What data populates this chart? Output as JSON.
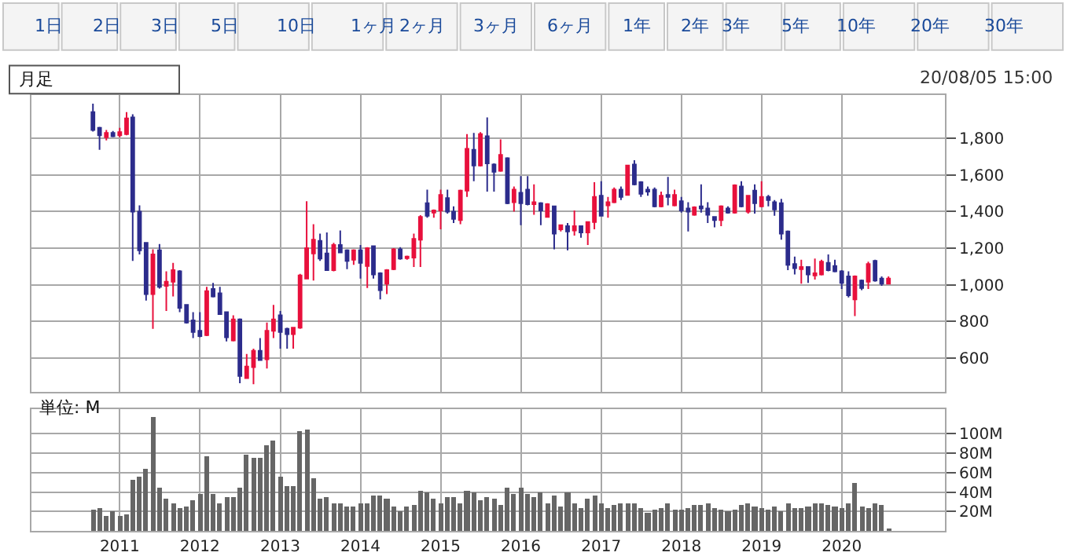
{
  "chart_data": [
    {
      "type": "candlestick",
      "x": [
        "2010-09",
        "2010-10",
        "2010-11",
        "2010-12",
        "2011-01",
        "2011-02",
        "2011-03",
        "2011-04",
        "2011-05",
        "2011-06",
        "2011-07",
        "2011-08",
        "2011-09",
        "2011-10",
        "2011-11",
        "2011-12",
        "2012-01",
        "2012-02",
        "2012-03",
        "2012-04",
        "2012-05",
        "2012-06",
        "2012-07",
        "2012-08",
        "2012-09",
        "2012-10",
        "2012-11",
        "2012-12",
        "2013-01",
        "2013-02",
        "2013-03",
        "2013-04",
        "2013-05",
        "2013-06",
        "2013-07",
        "2013-08",
        "2013-09",
        "2013-10",
        "2013-11",
        "2013-12",
        "2014-01",
        "2014-02",
        "2014-03",
        "2014-04",
        "2014-05",
        "2014-06",
        "2014-07",
        "2014-08",
        "2014-09",
        "2014-10",
        "2014-11",
        "2014-12",
        "2015-01",
        "2015-02",
        "2015-03",
        "2015-04",
        "2015-05",
        "2015-06",
        "2015-07",
        "2015-08",
        "2015-09",
        "2015-10",
        "2015-11",
        "2015-12",
        "2016-01",
        "2016-02",
        "2016-03",
        "2016-04",
        "2016-05",
        "2016-06",
        "2016-07",
        "2016-08",
        "2016-09",
        "2016-10",
        "2016-11",
        "2016-12",
        "2017-01",
        "2017-02",
        "2017-03",
        "2017-04",
        "2017-05",
        "2017-06",
        "2017-07",
        "2017-08",
        "2017-09",
        "2017-10",
        "2017-11",
        "2017-12",
        "2018-01",
        "2018-02",
        "2018-03",
        "2018-04",
        "2018-05",
        "2018-06",
        "2018-07",
        "2018-08",
        "2018-09",
        "2018-10",
        "2018-11",
        "2018-12",
        "2019-01",
        "2019-02",
        "2019-03",
        "2019-04",
        "2019-05",
        "2019-06",
        "2019-07",
        "2019-08",
        "2019-09",
        "2019-10",
        "2019-11",
        "2019-12",
        "2020-01",
        "2020-02",
        "2020-03",
        "2020-04",
        "2020-05",
        "2020-06",
        "2020-07",
        "2020-08"
      ],
      "ohlc": [
        [
          1943,
          1989,
          1837,
          1846
        ],
        [
          1857,
          1863,
          1737,
          1817
        ],
        [
          1806,
          1846,
          1789,
          1829
        ],
        [
          1829,
          1840,
          1806,
          1811
        ],
        [
          1817,
          1857,
          1806,
          1834
        ],
        [
          1823,
          1943,
          1817,
          1909
        ],
        [
          1914,
          1931,
          1131,
          1400
        ],
        [
          1400,
          1434,
          1166,
          1189
        ],
        [
          1229,
          1234,
          914,
          949
        ],
        [
          949,
          1194,
          760,
          1166
        ],
        [
          1189,
          1223,
          980,
          989
        ],
        [
          994,
          1074,
          857,
          1017
        ],
        [
          1017,
          1120,
          937,
          1080
        ],
        [
          1074,
          1080,
          851,
          874
        ],
        [
          891,
          891,
          789,
          794
        ],
        [
          806,
          851,
          709,
          743
        ],
        [
          749,
          851,
          714,
          720
        ],
        [
          726,
          989,
          720,
          966
        ],
        [
          977,
          1011,
          931,
          937
        ],
        [
          954,
          989,
          840,
          840
        ],
        [
          851,
          851,
          691,
          714
        ],
        [
          697,
          834,
          691,
          811
        ],
        [
          811,
          817,
          463,
          503
        ],
        [
          491,
          623,
          486,
          554
        ],
        [
          551,
          651,
          457,
          640
        ],
        [
          640,
          709,
          589,
          589
        ],
        [
          594,
          794,
          543,
          749
        ],
        [
          749,
          891,
          709,
          811
        ],
        [
          834,
          857,
          651,
          743
        ],
        [
          760,
          766,
          651,
          731
        ],
        [
          731,
          766,
          651,
          766
        ],
        [
          766,
          1060,
          760,
          1051
        ],
        [
          1034,
          1457,
          1034,
          1200
        ],
        [
          1171,
          1331,
          1023,
          1246
        ],
        [
          1240,
          1280,
          1131,
          1143
        ],
        [
          1171,
          1286,
          1080,
          1080
        ],
        [
          1080,
          1229,
          1074,
          1217
        ],
        [
          1217,
          1297,
          1177,
          1177
        ],
        [
          1189,
          1194,
          1086,
          1131
        ],
        [
          1137,
          1194,
          1109,
          1189
        ],
        [
          1189,
          1217,
          1034,
          1120
        ],
        [
          1103,
          1206,
          983,
          1200
        ],
        [
          1211,
          1211,
          1034,
          1057
        ],
        [
          1063,
          1069,
          920,
          971
        ],
        [
          1006,
          1086,
          949,
          1080
        ],
        [
          1086,
          1200,
          1080,
          1194
        ],
        [
          1194,
          1206,
          1137,
          1143
        ],
        [
          1146,
          1160,
          1137,
          1154
        ],
        [
          1149,
          1280,
          1097,
          1251
        ],
        [
          1246,
          1380,
          1097,
          1371
        ],
        [
          1446,
          1520,
          1366,
          1377
        ],
        [
          1394,
          1411,
          1366,
          1406
        ],
        [
          1406,
          1520,
          1303,
          1491
        ],
        [
          1474,
          1520,
          1389,
          1400
        ],
        [
          1400,
          1429,
          1337,
          1360
        ],
        [
          1354,
          1520,
          1331,
          1514
        ],
        [
          1514,
          1823,
          1480,
          1743
        ],
        [
          1737,
          1829,
          1566,
          1651
        ],
        [
          1651,
          1834,
          1646,
          1823
        ],
        [
          1811,
          1914,
          1509,
          1663
        ],
        [
          1657,
          1663,
          1509,
          1617
        ],
        [
          1623,
          1794,
          1617,
          1709
        ],
        [
          1691,
          1697,
          1440,
          1446
        ],
        [
          1451,
          1537,
          1400,
          1520
        ],
        [
          1503,
          1594,
          1326,
          1446
        ],
        [
          1520,
          1594,
          1434,
          1440
        ],
        [
          1440,
          1549,
          1383,
          1451
        ],
        [
          1446,
          1451,
          1326,
          1406
        ],
        [
          1371,
          1446,
          1366,
          1440
        ],
        [
          1429,
          1429,
          1194,
          1280
        ],
        [
          1303,
          1326,
          1291,
          1326
        ],
        [
          1320,
          1337,
          1189,
          1291
        ],
        [
          1297,
          1406,
          1269,
          1320
        ],
        [
          1320,
          1320,
          1257,
          1286
        ],
        [
          1286,
          1343,
          1217,
          1343
        ],
        [
          1343,
          1560,
          1303,
          1480
        ],
        [
          1486,
          1566,
          1377,
          1377
        ],
        [
          1434,
          1480,
          1366,
          1451
        ],
        [
          1451,
          1531,
          1446,
          1520
        ],
        [
          1520,
          1537,
          1463,
          1480
        ],
        [
          1491,
          1651,
          1486,
          1651
        ],
        [
          1657,
          1680,
          1543,
          1549
        ],
        [
          1560,
          1566,
          1480,
          1497
        ],
        [
          1520,
          1537,
          1486,
          1509
        ],
        [
          1520,
          1531,
          1423,
          1429
        ],
        [
          1429,
          1509,
          1423,
          1486
        ],
        [
          1491,
          1589,
          1434,
          1480
        ],
        [
          1434,
          1520,
          1429,
          1491
        ],
        [
          1457,
          1480,
          1394,
          1406
        ],
        [
          1417,
          1451,
          1291,
          1400
        ],
        [
          1383,
          1429,
          1377,
          1423
        ],
        [
          1429,
          1549,
          1394,
          1417
        ],
        [
          1417,
          1451,
          1337,
          1383
        ],
        [
          1371,
          1371,
          1314,
          1354
        ],
        [
          1354,
          1434,
          1320,
          1429
        ],
        [
          1417,
          1429,
          1389,
          1394
        ],
        [
          1394,
          1549,
          1389,
          1543
        ],
        [
          1537,
          1566,
          1423,
          1429
        ],
        [
          1400,
          1491,
          1389,
          1486
        ],
        [
          1514,
          1549,
          1389,
          1446
        ],
        [
          1429,
          1566,
          1423,
          1480
        ],
        [
          1480,
          1491,
          1429,
          1463
        ],
        [
          1451,
          1463,
          1377,
          1411
        ],
        [
          1446,
          1469,
          1246,
          1280
        ],
        [
          1291,
          1297,
          1080,
          1109
        ],
        [
          1114,
          1154,
          1057,
          1091
        ],
        [
          1086,
          1137,
          1006,
          1097
        ],
        [
          1097,
          1097,
          1011,
          1057
        ],
        [
          1051,
          1143,
          1029,
          1063
        ],
        [
          1057,
          1137,
          1051,
          1126
        ],
        [
          1120,
          1166,
          1074,
          1080
        ],
        [
          1103,
          1137,
          1069,
          1074
        ],
        [
          1074,
          1080,
          977,
          1011
        ],
        [
          1046,
          1074,
          931,
          943
        ],
        [
          920,
          1051,
          829,
          1046
        ],
        [
          1023,
          1029,
          971,
          983
        ],
        [
          1017,
          1126,
          977,
          1114
        ],
        [
          1131,
          1137,
          1017,
          1023
        ],
        [
          1034,
          1046,
          994,
          1006
        ],
        [
          1006,
          1046,
          1006,
          1034
        ]
      ],
      "colors": [
        "#2c2c8c",
        "#2c2c8c",
        "#e8103c",
        "#2c2c8c",
        "#e8103c",
        "#e8103c",
        "#2c2c8c",
        "#2c2c8c",
        "#2c2c8c",
        "#e8103c",
        "#2c2c8c",
        "#e8103c",
        "#e8103c",
        "#2c2c8c",
        "#2c2c8c",
        "#2c2c8c",
        "#2c2c8c",
        "#e8103c",
        "#2c2c8c",
        "#2c2c8c",
        "#2c2c8c",
        "#e8103c",
        "#2c2c8c",
        "#e8103c",
        "#e8103c",
        "#2c2c8c",
        "#e8103c",
        "#e8103c",
        "#2c2c8c",
        "#2c2c8c",
        "#e8103c",
        "#e8103c",
        "#e8103c",
        "#e8103c",
        "#2c2c8c",
        "#2c2c8c",
        "#e8103c",
        "#2c2c8c",
        "#2c2c8c",
        "#e8103c",
        "#2c2c8c",
        "#e8103c",
        "#2c2c8c",
        "#2c2c8c",
        "#e8103c",
        "#e8103c",
        "#2c2c8c",
        "#e8103c",
        "#e8103c",
        "#e8103c",
        "#2c2c8c",
        "#e8103c",
        "#e8103c",
        "#2c2c8c",
        "#2c2c8c",
        "#e8103c",
        "#e8103c",
        "#2c2c8c",
        "#e8103c",
        "#2c2c8c",
        "#2c2c8c",
        "#e8103c",
        "#2c2c8c",
        "#e8103c",
        "#2c2c8c",
        "#2c2c8c",
        "#e8103c",
        "#2c2c8c",
        "#e8103c",
        "#2c2c8c",
        "#e8103c",
        "#2c2c8c",
        "#e8103c",
        "#2c2c8c",
        "#e8103c",
        "#e8103c",
        "#2c2c8c",
        "#e8103c",
        "#e8103c",
        "#2c2c8c",
        "#e8103c",
        "#2c2c8c",
        "#2c2c8c",
        "#2c2c8c",
        "#2c2c8c",
        "#e8103c",
        "#2c2c8c",
        "#e8103c",
        "#2c2c8c",
        "#2c2c8c",
        "#e8103c",
        "#2c2c8c",
        "#2c2c8c",
        "#2c2c8c",
        "#e8103c",
        "#2c2c8c",
        "#e8103c",
        "#2c2c8c",
        "#e8103c",
        "#2c2c8c",
        "#e8103c",
        "#2c2c8c",
        "#2c2c8c",
        "#2c2c8c",
        "#2c2c8c",
        "#2c2c8c",
        "#e8103c",
        "#2c2c8c",
        "#e8103c",
        "#e8103c",
        "#2c2c8c",
        "#2c2c8c",
        "#2c2c8c",
        "#2c2c8c",
        "#e8103c",
        "#2c2c8c",
        "#e8103c",
        "#2c2c8c",
        "#2c2c8c",
        "#e8103c"
      ],
      "xlim": [
        "2009-11-25",
        "2021-04-15"
      ],
      "xticks": [
        "2011",
        "2012",
        "2013",
        "2014",
        "2015",
        "2016",
        "2017",
        "2018",
        "2019",
        "2020"
      ],
      "ylim": [
        415,
        2035
      ],
      "yticks": [
        600,
        800,
        {
          "value": 1000,
          "label": "1,000"
        },
        {
          "value": 1200,
          "label": "1,200"
        },
        {
          "value": 1400,
          "label": "1,400"
        },
        {
          "value": 1600,
          "label": "1,600"
        },
        {
          "value": 1800,
          "label": "1,800"
        }
      ],
      "grid": true,
      "tick_labels": "y",
      "annotations": [
        "1日",
        "2日",
        "3日",
        "5日",
        "10日",
        "1ヶ月",
        "2ヶ月",
        "3ヶ月",
        "6ヶ月",
        "1年",
        "2年",
        "3年",
        "5年",
        "10年",
        "20年",
        "30年",
        "月足",
        "20/08/05 15:00"
      ]
    },
    {
      "type": "bar",
      "x": [
        "2010-09",
        "2010-10",
        "2010-11",
        "2010-12",
        "2011-01",
        "2011-02",
        "2011-03",
        "2011-04",
        "2011-05",
        "2011-06",
        "2011-07",
        "2011-08",
        "2011-09",
        "2011-10",
        "2011-11",
        "2011-12",
        "2012-01",
        "2012-02",
        "2012-03",
        "2012-04",
        "2012-05",
        "2012-06",
        "2012-07",
        "2012-08",
        "2012-09",
        "2012-10",
        "2012-11",
        "2012-12",
        "2013-01",
        "2013-02",
        "2013-03",
        "2013-04",
        "2013-05",
        "2013-06",
        "2013-07",
        "2013-08",
        "2013-09",
        "2013-10",
        "2013-11",
        "2013-12",
        "2014-01",
        "2014-02",
        "2014-03",
        "2014-04",
        "2014-05",
        "2014-06",
        "2014-07",
        "2014-08",
        "2014-09",
        "2014-10",
        "2014-11",
        "2014-12",
        "2015-01",
        "2015-02",
        "2015-03",
        "2015-04",
        "2015-05",
        "2015-06",
        "2015-07",
        "2015-08",
        "2015-09",
        "2015-10",
        "2015-11",
        "2015-12",
        "2016-01",
        "2016-02",
        "2016-03",
        "2016-04",
        "2016-05",
        "2016-06",
        "2016-07",
        "2016-08",
        "2016-09",
        "2016-10",
        "2016-11",
        "2016-12",
        "2017-01",
        "2017-02",
        "2017-03",
        "2017-04",
        "2017-05",
        "2017-06",
        "2017-07",
        "2017-08",
        "2017-09",
        "2017-10",
        "2017-11",
        "2017-12",
        "2018-01",
        "2018-02",
        "2018-03",
        "2018-04",
        "2018-05",
        "2018-06",
        "2018-07",
        "2018-08",
        "2018-09",
        "2018-10",
        "2018-11",
        "2018-12",
        "2019-01",
        "2019-02",
        "2019-03",
        "2019-04",
        "2019-05",
        "2019-06",
        "2019-07",
        "2019-08",
        "2019-09",
        "2019-10",
        "2019-11",
        "2019-12",
        "2020-01",
        "2020-02",
        "2020-03",
        "2020-04",
        "2020-05",
        "2020-06",
        "2020-07",
        "2020-08"
      ],
      "values": [
        22,
        24,
        16,
        20,
        16,
        17,
        52,
        55,
        63,
        117,
        44,
        33,
        28,
        24,
        25,
        31,
        38,
        77,
        38,
        28,
        34,
        34,
        44,
        78,
        75,
        75,
        88,
        93,
        56,
        46,
        46,
        102,
        104,
        54,
        33,
        34,
        29,
        28,
        25,
        25,
        29,
        29,
        37,
        36,
        33,
        25,
        20,
        25,
        26,
        42,
        39,
        33,
        28,
        35,
        34,
        29,
        41,
        39,
        32,
        34,
        33,
        26,
        45,
        38,
        45,
        38,
        34,
        39,
        29,
        36,
        25,
        39,
        29,
        23,
        33,
        37,
        28,
        23,
        26,
        29,
        28,
        28,
        23,
        19,
        22,
        23,
        28,
        22,
        22,
        23,
        26,
        26,
        29,
        23,
        22,
        21,
        22,
        26,
        28,
        25,
        23,
        22,
        25,
        20,
        28,
        23,
        23,
        25,
        29,
        29,
        26,
        25,
        23,
        28,
        50,
        25,
        23,
        28,
        26,
        3
      ],
      "color": "#666666",
      "xlim": [
        "2009-11-25",
        "2021-04-15"
      ],
      "xticks": [
        "2011",
        "2012",
        "2013",
        "2014",
        "2015",
        "2016",
        "2017",
        "2018",
        "2019",
        "2020"
      ],
      "ylim": [
        0,
        125
      ],
      "yticks": [
        {
          "value": 20,
          "label": "20M"
        },
        {
          "value": 40,
          "label": "40M"
        },
        {
          "value": 60,
          "label": "60M"
        },
        {
          "value": 80,
          "label": "80M"
        },
        {
          "value": 100,
          "label": "100M"
        }
      ],
      "grid": true,
      "annotations": [
        "単位: M"
      ]
    }
  ]
}
